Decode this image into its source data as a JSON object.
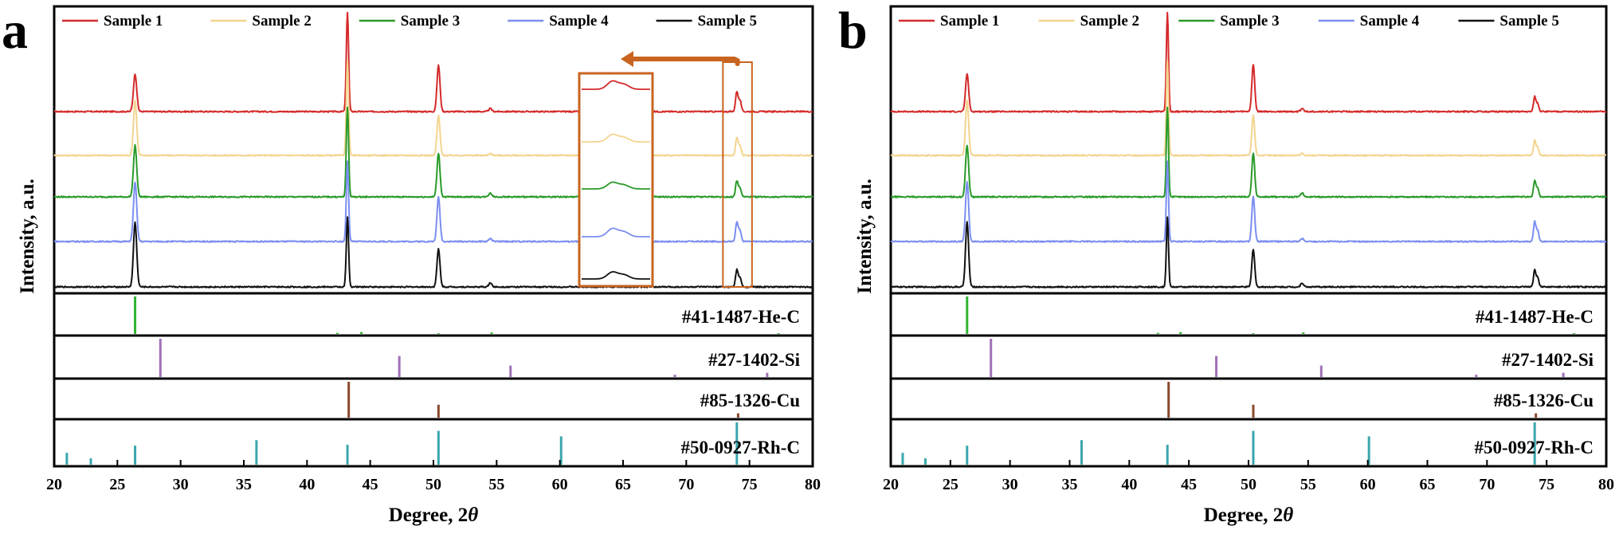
{
  "figure": {
    "panels": [
      "a",
      "b"
    ],
    "legend": [
      "Sample 1",
      "Sample 2",
      "Sample 3",
      "Sample 4",
      "Sample 5"
    ],
    "references": [
      "#41-1487-He-C",
      "#27-1402-Si",
      "#85-1326-Cu",
      "#50-0927-Rh-C"
    ],
    "xlabel_text": "Degree, 2",
    "xlabel_symbol": "θ",
    "ylabel": "Intensity, a.u."
  },
  "colors": {
    "sample_1": "#d42a2a",
    "sample_2": "#f3d48f",
    "sample_3": "#2a9a2a",
    "sample_4": "#7b8ef0",
    "sample_5": "#111111",
    "ref_he_c": "#2fb52f",
    "ref_si": "#a070b8",
    "ref_cu": "#8a4a2c",
    "ref_rh_c": "#3aa6ad",
    "annotation": "#c86420"
  },
  "chart_data": [
    {
      "type": "line",
      "panel": "a",
      "xlabel": "Degree, 2θ",
      "ylabel": "Intensity, a.u.",
      "xlim": [
        20,
        80
      ],
      "xticks": [
        20,
        25,
        30,
        35,
        40,
        45,
        50,
        55,
        60,
        65,
        70,
        75,
        80
      ],
      "series": [
        {
          "name": "Sample 1",
          "peaks": [
            [
              26.4,
              38
            ],
            [
              43.2,
              100
            ],
            [
              50.4,
              47
            ],
            [
              54.5,
              3
            ],
            [
              74.0,
              20
            ]
          ]
        },
        {
          "name": "Sample 2",
          "peaks": [
            [
              26.4,
              55
            ],
            [
              43.2,
              95
            ],
            [
              50.4,
              40
            ],
            [
              54.5,
              2
            ],
            [
              74.0,
              18
            ]
          ]
        },
        {
          "name": "Sample 3",
          "peaks": [
            [
              26.4,
              52
            ],
            [
              43.2,
              90
            ],
            [
              50.4,
              44
            ],
            [
              54.5,
              4
            ],
            [
              74.0,
              16
            ]
          ]
        },
        {
          "name": "Sample 4",
          "peaks": [
            [
              26.4,
              60
            ],
            [
              43.2,
              80
            ],
            [
              50.4,
              45
            ],
            [
              54.5,
              3
            ],
            [
              74.0,
              20
            ]
          ]
        },
        {
          "name": "Sample 5",
          "peaks": [
            [
              26.4,
              65
            ],
            [
              43.2,
              70
            ],
            [
              50.4,
              38
            ],
            [
              54.5,
              4
            ],
            [
              74.0,
              17
            ]
          ]
        }
      ],
      "references": [
        {
          "name": "#41-1487-He-C",
          "sticks": [
            [
              26.4,
              100
            ],
            [
              42.4,
              3
            ],
            [
              44.3,
              5
            ],
            [
              50.4,
              2
            ],
            [
              54.6,
              4
            ],
            [
              77.3,
              2
            ]
          ]
        },
        {
          "name": "#27-1402-Si",
          "sticks": [
            [
              28.4,
              100
            ],
            [
              47.3,
              55
            ],
            [
              56.1,
              30
            ],
            [
              69.1,
              6
            ],
            [
              76.4,
              11
            ]
          ]
        },
        {
          "name": "#85-1326-Cu",
          "sticks": [
            [
              43.3,
              100
            ],
            [
              50.4,
              36
            ],
            [
              74.1,
              12
            ]
          ]
        },
        {
          "name": "#50-0927-Rh-C",
          "sticks": [
            [
              21.0,
              28
            ],
            [
              22.9,
              15
            ],
            [
              26.4,
              45
            ],
            [
              36.0,
              58
            ],
            [
              43.2,
              47
            ],
            [
              50.4,
              80
            ],
            [
              60.1,
              67
            ],
            [
              74.0,
              100
            ]
          ]
        }
      ],
      "annotation": "zoomed inset of 73–75° region for all samples"
    },
    {
      "type": "line",
      "panel": "b",
      "xlabel": "Degree, 2θ",
      "ylabel": "Intensity, a.u.",
      "xlim": [
        20,
        80
      ],
      "xticks": [
        20,
        25,
        30,
        35,
        40,
        45,
        50,
        55,
        60,
        65,
        70,
        75,
        80
      ],
      "series": [
        {
          "name": "Sample 1",
          "peaks": [
            [
              26.4,
              38
            ],
            [
              43.2,
              100
            ],
            [
              50.4,
              47
            ],
            [
              54.5,
              3
            ],
            [
              74.0,
              15
            ]
          ]
        },
        {
          "name": "Sample 2",
          "peaks": [
            [
              26.4,
              55
            ],
            [
              43.2,
              95
            ],
            [
              50.4,
              40
            ],
            [
              54.5,
              2
            ],
            [
              74.0,
              15
            ]
          ]
        },
        {
          "name": "Sample 3",
          "peaks": [
            [
              26.4,
              52
            ],
            [
              43.2,
              90
            ],
            [
              50.4,
              44
            ],
            [
              54.5,
              4
            ],
            [
              74.0,
              16
            ]
          ]
        },
        {
          "name": "Sample 4",
          "peaks": [
            [
              26.4,
              60
            ],
            [
              43.2,
              80
            ],
            [
              50.4,
              45
            ],
            [
              54.5,
              3
            ],
            [
              74.0,
              20
            ]
          ]
        },
        {
          "name": "Sample 5",
          "peaks": [
            [
              26.4,
              65
            ],
            [
              43.2,
              70
            ],
            [
              50.4,
              38
            ],
            [
              54.5,
              4
            ],
            [
              74.0,
              17
            ]
          ]
        }
      ],
      "references": [
        {
          "name": "#41-1487-He-C",
          "sticks": [
            [
              26.4,
              100
            ],
            [
              42.4,
              3
            ],
            [
              44.3,
              5
            ],
            [
              50.4,
              2
            ],
            [
              54.6,
              4
            ],
            [
              77.3,
              2
            ]
          ]
        },
        {
          "name": "#27-1402-Si",
          "sticks": [
            [
              28.4,
              100
            ],
            [
              47.3,
              55
            ],
            [
              56.1,
              30
            ],
            [
              69.1,
              6
            ],
            [
              76.4,
              11
            ]
          ]
        },
        {
          "name": "#85-1326-Cu",
          "sticks": [
            [
              43.3,
              100
            ],
            [
              50.4,
              36
            ],
            [
              74.1,
              12
            ]
          ]
        },
        {
          "name": "#50-0927-Rh-C",
          "sticks": [
            [
              21.0,
              28
            ],
            [
              22.9,
              15
            ],
            [
              26.4,
              45
            ],
            [
              36.0,
              58
            ],
            [
              43.2,
              47
            ],
            [
              50.4,
              80
            ],
            [
              60.1,
              67
            ],
            [
              74.0,
              100
            ]
          ]
        }
      ]
    }
  ]
}
